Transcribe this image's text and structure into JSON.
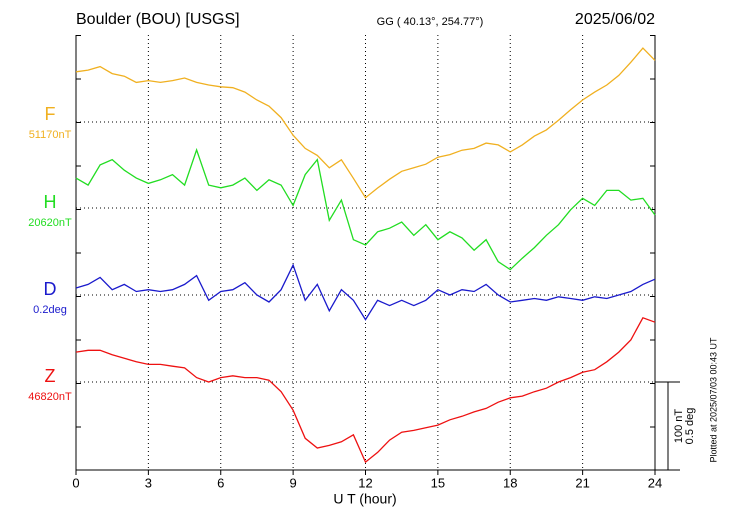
{
  "chart_data": {
    "type": "line",
    "title": "Boulder (BOU)  [USGS]",
    "subtitle": "GG ( 40.13°, 254.77°)",
    "date": "2025/06/02",
    "xlabel": "U T (hour)",
    "note": "Plotted at 2025/07/03 00:43 UT",
    "xlim": [
      0,
      24
    ],
    "xticks": [
      0,
      3,
      6,
      9,
      12,
      15,
      18,
      21,
      24
    ],
    "grid": true,
    "scale_bars": [
      {
        "value": 100,
        "label": "100 nT"
      },
      {
        "value": 0.5,
        "label": "0.5 deg"
      }
    ],
    "x": [
      0,
      0.5,
      1,
      1.5,
      2,
      2.5,
      3,
      3.5,
      4,
      4.5,
      5,
      5.5,
      6,
      6.5,
      7,
      7.5,
      8,
      8.5,
      9,
      9.5,
      10,
      10.5,
      11,
      11.5,
      12,
      12.5,
      13,
      13.5,
      14,
      14.5,
      15,
      15.5,
      16,
      16.5,
      17,
      17.5,
      18,
      18.5,
      19,
      19.5,
      20,
      20.5,
      21,
      21.5,
      22,
      22.5,
      23,
      23.5,
      24
    ],
    "series": [
      {
        "name": "F",
        "color": "#f0b020",
        "baseline": {
          "value": 51170,
          "label": "51170nT"
        },
        "values": [
          51227,
          51229,
          51233,
          51225,
          51222,
          51215,
          51217,
          51215,
          51217,
          51220,
          51215,
          51212,
          51210,
          51209,
          51204,
          51195,
          51188,
          51175,
          51155,
          51140,
          51132,
          51118,
          51127,
          51106,
          51084,
          51095,
          51105,
          51114,
          51118,
          51122,
          51130,
          51133,
          51138,
          51140,
          51146,
          51144,
          51136,
          51144,
          51154,
          51161,
          51172,
          51184,
          51195,
          51204,
          51212,
          51223,
          51238,
          51254,
          51240
        ]
      },
      {
        "name": "H",
        "color": "#22dd22",
        "baseline": {
          "value": 20620,
          "label": "20620nT"
        },
        "values": [
          20654,
          20646,
          20669,
          20675,
          20663,
          20654,
          20648,
          20652,
          20658,
          20646,
          20686,
          20646,
          20643,
          20646,
          20654,
          20640,
          20652,
          20646,
          20623,
          20658,
          20675,
          20606,
          20629,
          20584,
          20578,
          20593,
          20597,
          20604,
          20589,
          20601,
          20584,
          20593,
          20586,
          20572,
          20584,
          20559,
          20550,
          20563,
          20575,
          20589,
          20601,
          20618,
          20631,
          20623,
          20640,
          20640,
          20629,
          20631,
          20612
        ]
      },
      {
        "name": "D",
        "color": "#1a1acc",
        "baseline": {
          "value": 0.2,
          "label": "0.2deg"
        },
        "values": [
          0.24,
          0.26,
          0.3,
          0.23,
          0.26,
          0.22,
          0.23,
          0.22,
          0.23,
          0.26,
          0.31,
          0.17,
          0.22,
          0.23,
          0.27,
          0.2,
          0.16,
          0.23,
          0.37,
          0.17,
          0.26,
          0.11,
          0.23,
          0.17,
          0.06,
          0.17,
          0.14,
          0.17,
          0.14,
          0.17,
          0.23,
          0.2,
          0.23,
          0.22,
          0.26,
          0.2,
          0.16,
          0.17,
          0.18,
          0.17,
          0.19,
          0.18,
          0.17,
          0.19,
          0.18,
          0.2,
          0.22,
          0.26,
          0.29
        ]
      },
      {
        "name": "Z",
        "color": "#ee1111",
        "baseline": {
          "value": 46820,
          "label": "46820nT"
        },
        "values": [
          46854,
          46856,
          46856,
          46851,
          46847,
          46843,
          46840,
          46840,
          46838,
          46836,
          46825,
          46820,
          46825,
          46827,
          46825,
          46825,
          46822,
          46809,
          46788,
          46756,
          46745,
          46748,
          46752,
          46760,
          46729,
          46740,
          46754,
          46763,
          46765,
          46768,
          46771,
          46777,
          46781,
          46786,
          46790,
          46797,
          46802,
          46804,
          46809,
          46813,
          46820,
          46825,
          46831,
          46834,
          46843,
          46854,
          46868,
          46893,
          46888
        ]
      }
    ]
  }
}
